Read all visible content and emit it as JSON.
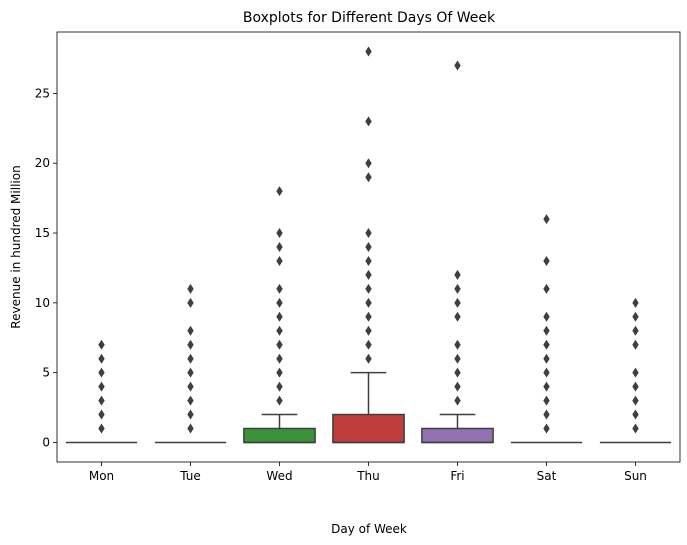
{
  "chart_data": {
    "type": "boxplot",
    "title": "Boxplots for Different Days Of Week",
    "xlabel": "Day of Week",
    "ylabel": "Revenue in hundred Million",
    "ylim": [
      -1.4,
      29.4
    ],
    "yticks": [
      0,
      5,
      10,
      15,
      20,
      25
    ],
    "grid": false,
    "categories": [
      "Mon",
      "Tue",
      "Wed",
      "Thu",
      "Fri",
      "Sat",
      "Sun"
    ],
    "colors": [
      "#3274a1",
      "#e1812c",
      "#3a923a",
      "#c03d3e",
      "#9372b2",
      "#845b53",
      "#d684bd"
    ],
    "boxes": [
      {
        "q1": 0,
        "median": 0,
        "q3": 0,
        "whisker_low": 0,
        "whisker_high": 0,
        "outliers": [
          1,
          2,
          3,
          4,
          5,
          6,
          7
        ]
      },
      {
        "q1": 0,
        "median": 0,
        "q3": 0,
        "whisker_low": 0,
        "whisker_high": 0,
        "outliers": [
          1,
          2,
          3,
          4,
          5,
          6,
          7,
          8,
          10,
          11
        ]
      },
      {
        "q1": 0,
        "median": 0,
        "q3": 1,
        "whisker_low": 0,
        "whisker_high": 2,
        "outliers": [
          3,
          4,
          5,
          6,
          7,
          8,
          9,
          10,
          11,
          13,
          14,
          15,
          18
        ]
      },
      {
        "q1": 0,
        "median": 0,
        "q3": 2,
        "whisker_low": 0,
        "whisker_high": 5,
        "outliers": [
          6,
          7,
          8,
          9,
          10,
          11,
          12,
          13,
          14,
          15,
          19,
          20,
          23,
          28
        ]
      },
      {
        "q1": 0,
        "median": 0,
        "q3": 1,
        "whisker_low": 0,
        "whisker_high": 2,
        "outliers": [
          3,
          4,
          5,
          6,
          7,
          9,
          10,
          11,
          12,
          27
        ]
      },
      {
        "q1": 0,
        "median": 0,
        "q3": 0,
        "whisker_low": 0,
        "whisker_high": 0,
        "outliers": [
          1,
          2,
          3,
          4,
          5,
          6,
          7,
          8,
          9,
          11,
          13,
          16
        ]
      },
      {
        "q1": 0,
        "median": 0,
        "q3": 0,
        "whisker_low": 0,
        "whisker_high": 0,
        "outliers": [
          1,
          2,
          3,
          4,
          5,
          7,
          8,
          9,
          10
        ]
      }
    ]
  }
}
